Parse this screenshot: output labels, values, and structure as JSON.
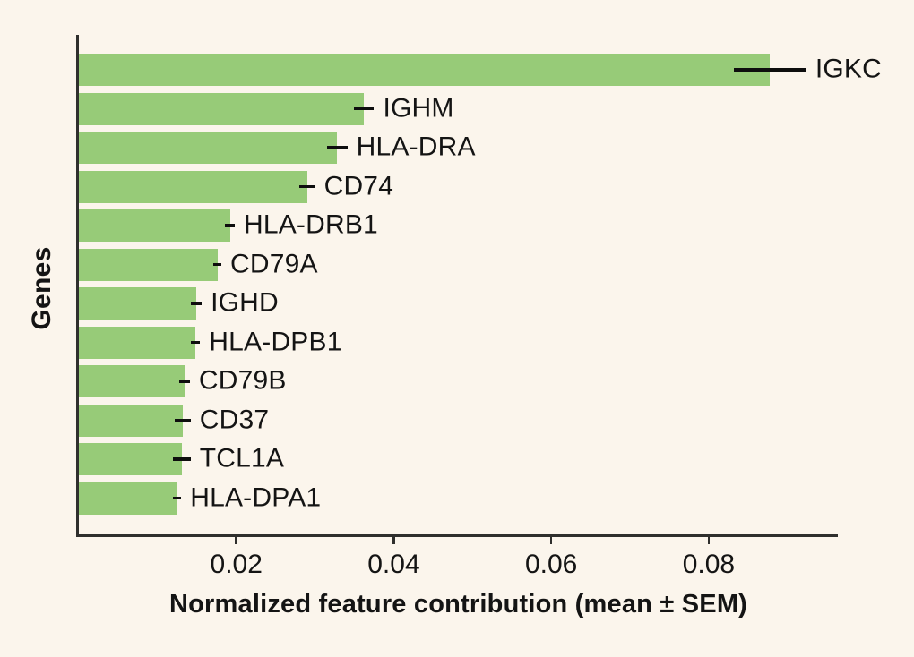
{
  "figure": {
    "background_color": "#FBF5EC",
    "bar_color": "#97CB78",
    "axis_color": "#2F2F2D",
    "text_color": "#141414",
    "errorbar_color": "#0E0E0E"
  },
  "chart_data": {
    "type": "bar",
    "orientation": "horizontal",
    "title": "",
    "xlabel": "Normalized feature contribution (mean ± SEM)",
    "ylabel": "Genes",
    "xlim": [
      0,
      0.0964
    ],
    "grid": false,
    "legend": "none",
    "error_bar_type": "SEM",
    "xtick_values": [
      0.02,
      0.04,
      0.06,
      0.08
    ],
    "xtick_labels": [
      "0.02",
      "0.04",
      "0.06",
      "0.08"
    ],
    "categories": [
      "IGKC",
      "IGHM",
      "HLA-DRA",
      "CD74",
      "HLA-DRB1",
      "CD79A",
      "IGHD",
      "HLA-DPB1",
      "CD79B",
      "CD37",
      "TCL1A",
      "HLA-DPA1"
    ],
    "values": [
      0.0878,
      0.0362,
      0.0328,
      0.029,
      0.0192,
      0.0176,
      0.0149,
      0.0148,
      0.0134,
      0.0132,
      0.0131,
      0.0125
    ],
    "sem": [
      0.0046,
      0.0013,
      0.0013,
      0.001,
      0.0006,
      0.0005,
      0.0007,
      0.0006,
      0.0007,
      0.001,
      0.0011,
      0.0005
    ]
  }
}
